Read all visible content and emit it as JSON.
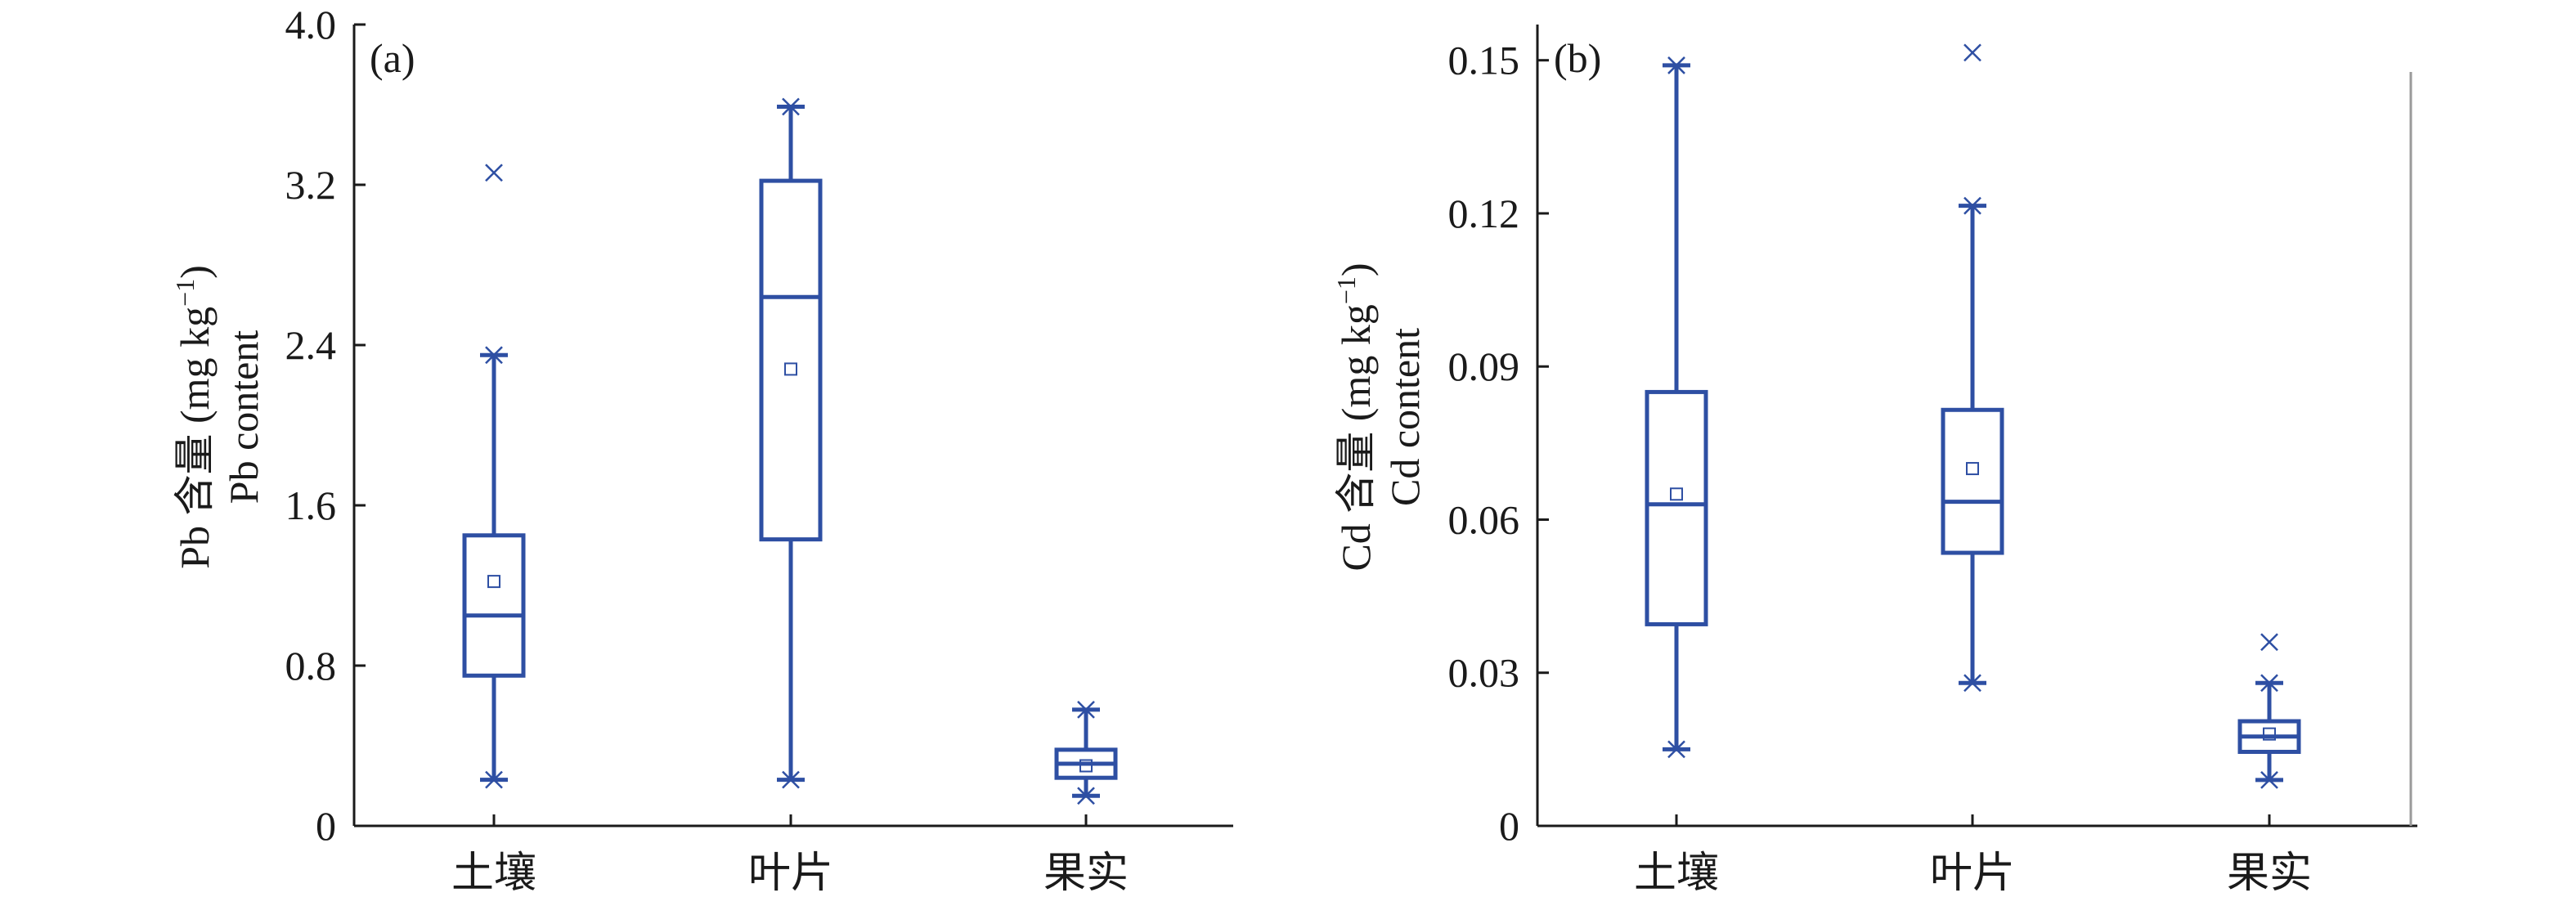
{
  "colors": {
    "box": "#2e4fa3",
    "axis": "#1a1a1a",
    "right_border": "#9a9a9a"
  },
  "chart_data": [
    {
      "type": "box",
      "panel_label": "(a)",
      "ylabel_line1": "Pb 含量 (mg kg",
      "ylabel_sup": "−1",
      "ylabel_close": ")",
      "ylabel_line2": "Pb content",
      "categories": [
        "土壤",
        "叶片",
        "果实"
      ],
      "ylim": [
        0,
        4.0
      ],
      "yticks": [
        0,
        0.8,
        1.6,
        2.4,
        3.2,
        4.0
      ],
      "ytick_labels": [
        "0",
        "0.8",
        "1.6",
        "2.4",
        "3.2",
        "4.0"
      ],
      "boxes": [
        {
          "min": 0.23,
          "q1": 0.75,
          "median": 1.05,
          "q3": 1.45,
          "max": 2.35,
          "mean": 1.22,
          "outliers": [
            3.26
          ]
        },
        {
          "min": 0.23,
          "q1": 1.43,
          "median": 2.64,
          "q3": 3.22,
          "max": 3.59,
          "mean": 2.28,
          "outliers": []
        },
        {
          "min": 0.15,
          "q1": 0.24,
          "median": 0.31,
          "q3": 0.38,
          "max": 0.58,
          "mean": 0.3,
          "outliers": []
        }
      ],
      "grid": false
    },
    {
      "type": "box",
      "panel_label": "(b)",
      "ylabel_line1": "Cd 含量 (mg kg",
      "ylabel_sup": "−1",
      "ylabel_close": ")",
      "ylabel_line2": "Cd content",
      "categories": [
        "土壤",
        "叶片",
        "果实"
      ],
      "ylim": [
        0,
        0.157
      ],
      "yticks": [
        0,
        0.03,
        0.06,
        0.09,
        0.12,
        0.15
      ],
      "ytick_labels": [
        "0",
        "0.03",
        "0.06",
        "0.09",
        "0.12",
        "0.15"
      ],
      "boxes": [
        {
          "min": 0.015,
          "q1": 0.0395,
          "median": 0.063,
          "q3": 0.085,
          "max": 0.149,
          "mean": 0.065,
          "outliers": []
        },
        {
          "min": 0.028,
          "q1": 0.0535,
          "median": 0.0635,
          "q3": 0.0815,
          "max": 0.1215,
          "mean": 0.07,
          "outliers": [
            0.1515
          ]
        },
        {
          "min": 0.009,
          "q1": 0.0145,
          "median": 0.0175,
          "q3": 0.0205,
          "max": 0.028,
          "mean": 0.018,
          "outliers": [
            0.036
          ]
        }
      ],
      "grid": false
    }
  ]
}
